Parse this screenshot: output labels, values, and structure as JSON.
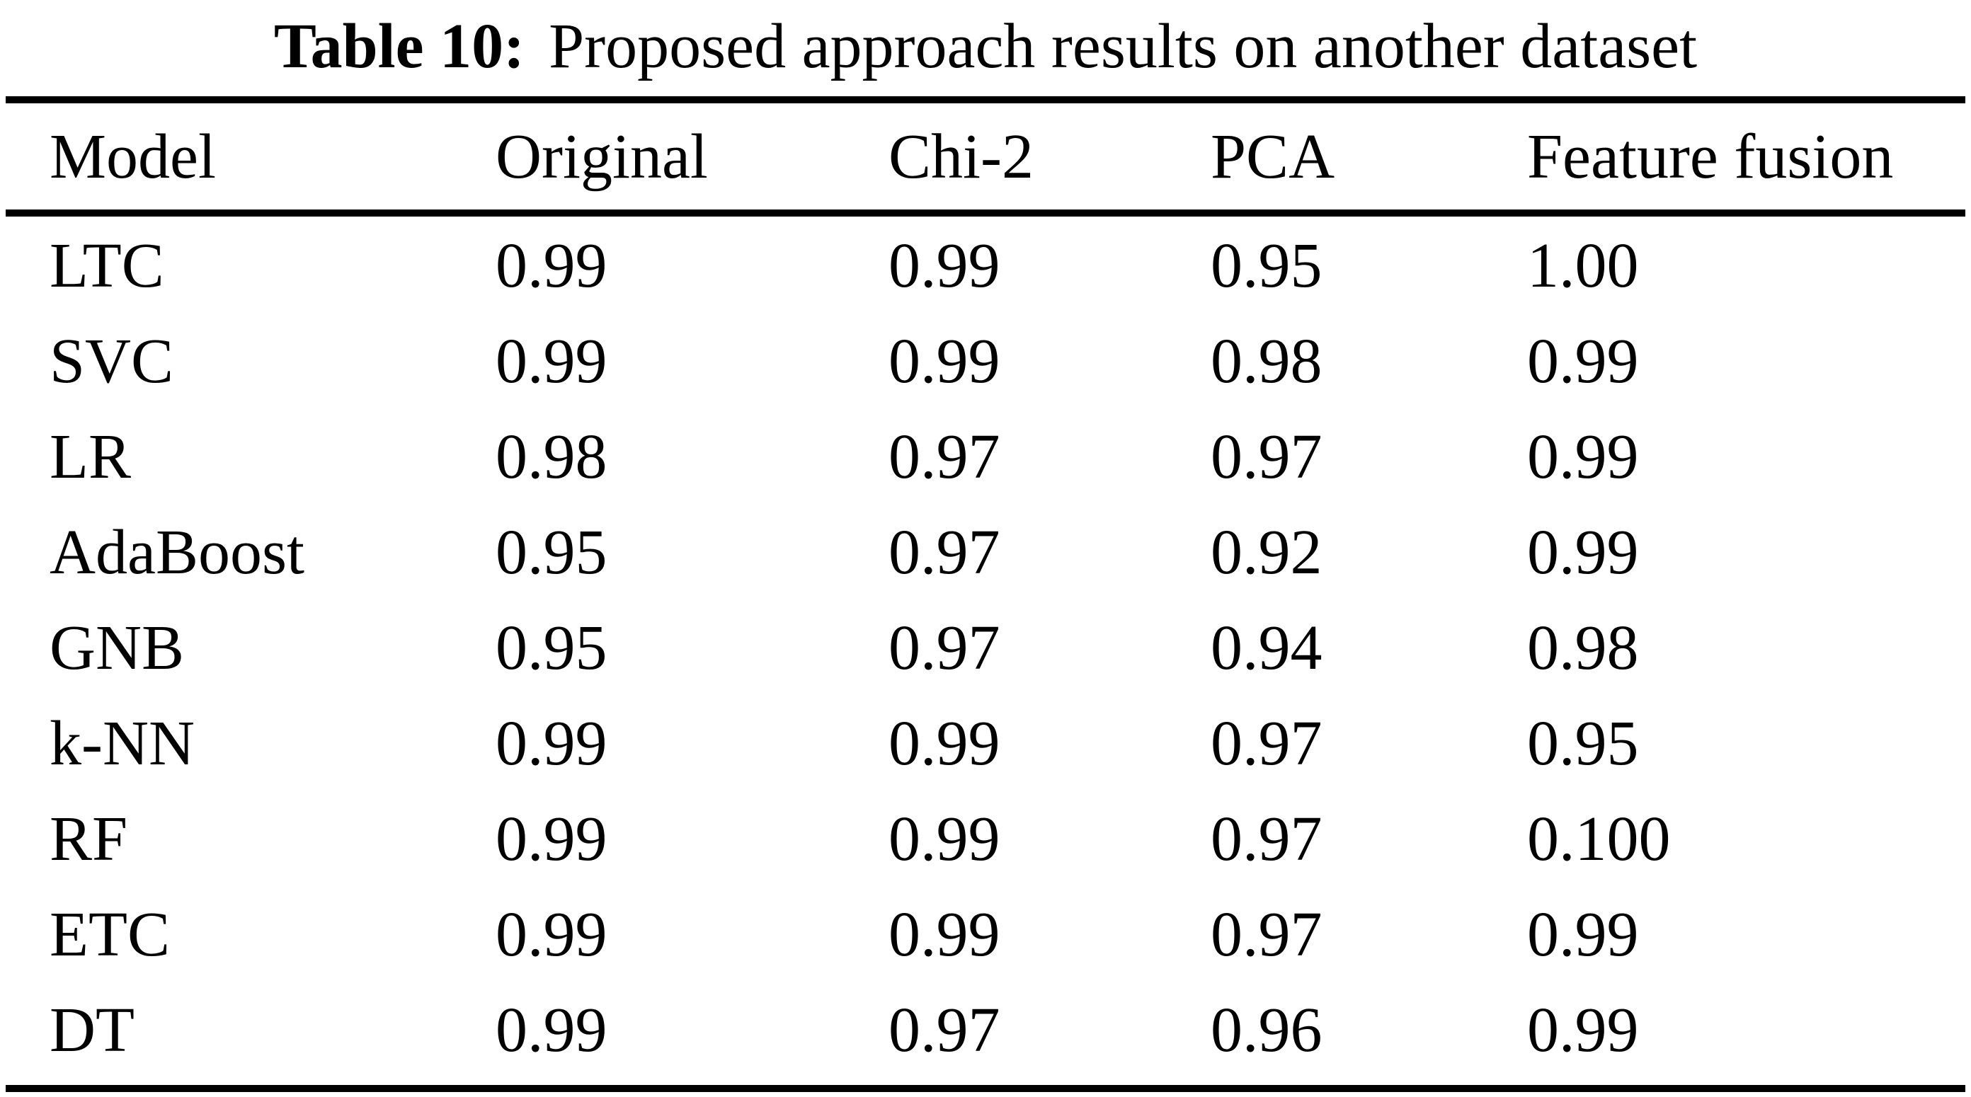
{
  "page": {
    "background": "#ffffff",
    "text_color": "#000000"
  },
  "caption": {
    "label": "Table 10:",
    "text": "Proposed approach results on another dataset"
  },
  "table": {
    "columns": [
      "Model",
      "Original",
      "Chi-2",
      "PCA",
      "Feature fusion"
    ],
    "rows": [
      [
        "LTC",
        "0.99",
        "0.99",
        "0.95",
        "1.00"
      ],
      [
        "SVC",
        "0.99",
        "0.99",
        "0.98",
        "0.99"
      ],
      [
        "LR",
        "0.98",
        "0.97",
        "0.97",
        "0.99"
      ],
      [
        "AdaBoost",
        "0.95",
        "0.97",
        "0.92",
        "0.99"
      ],
      [
        "GNB",
        "0.95",
        "0.97",
        "0.94",
        "0.98"
      ],
      [
        "k-NN",
        "0.99",
        "0.99",
        "0.97",
        "0.95"
      ],
      [
        "RF",
        "0.99",
        "0.99",
        "0.97",
        "0.100"
      ],
      [
        "ETC",
        "0.99",
        "0.99",
        "0.97",
        "0.99"
      ],
      [
        "DT",
        "0.99",
        "0.97",
        "0.96",
        "0.99"
      ]
    ]
  },
  "chart_data": {
    "type": "table",
    "title": "Table 10: Proposed approach results on another dataset",
    "columns": [
      "Model",
      "Original",
      "Chi-2",
      "PCA",
      "Feature fusion"
    ],
    "rows": [
      [
        "LTC",
        "0.99",
        "0.99",
        "0.95",
        "1.00"
      ],
      [
        "SVC",
        "0.99",
        "0.99",
        "0.98",
        "0.99"
      ],
      [
        "LR",
        "0.98",
        "0.97",
        "0.97",
        "0.99"
      ],
      [
        "AdaBoost",
        "0.95",
        "0.97",
        "0.92",
        "0.99"
      ],
      [
        "GNB",
        "0.95",
        "0.97",
        "0.94",
        "0.98"
      ],
      [
        "k-NN",
        "0.99",
        "0.99",
        "0.97",
        "0.95"
      ],
      [
        "RF",
        "0.99",
        "0.99",
        "0.97",
        "0.100"
      ],
      [
        "ETC",
        "0.99",
        "0.99",
        "0.97",
        "0.99"
      ],
      [
        "DT",
        "0.99",
        "0.97",
        "0.96",
        "0.99"
      ]
    ]
  }
}
